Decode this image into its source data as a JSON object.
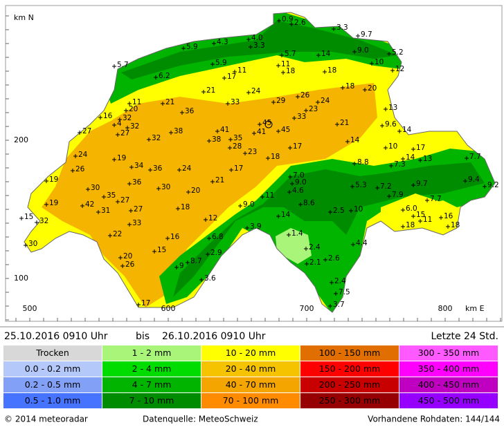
{
  "header": {
    "period_from": "25.10.2016 0910 Uhr",
    "bis": "bis",
    "period_to": "26.10.2016 0910 Uhr",
    "window": "Letzte 24 Std."
  },
  "map": {
    "north_label": "km N",
    "east_label": "km E",
    "y_ticks": [
      200,
      100
    ],
    "x_ticks": [
      500,
      600,
      700,
      800
    ],
    "stations": [
      "0.9",
      "2.6",
      "3.3",
      "9.7",
      "4.0",
      "4.3",
      "5.9",
      "3.3",
      "5.7",
      "14",
      "9.0",
      "5.2",
      "5.7",
      "5.9",
      "11",
      "10",
      "12",
      "6.2",
      "17",
      "11",
      "18",
      "18",
      "18",
      "20",
      "21",
      "24",
      "26",
      "24",
      "11",
      "21",
      "33",
      "29",
      "23",
      "20",
      "16",
      "36",
      "32",
      "13",
      "33",
      "4",
      "32",
      "27",
      "27",
      "38",
      "41",
      "45",
      "21",
      "45",
      "41",
      "9.6",
      "14",
      "32",
      "38",
      "35",
      "28",
      "14",
      "10",
      "17",
      "17",
      "23",
      "24",
      "19",
      "18",
      "14",
      "13",
      "7.7",
      "8.8",
      "7.3",
      "34",
      "36",
      "24",
      "26",
      "17",
      "7.0",
      "9.0",
      "19",
      "36",
      "21",
      "5.3",
      "7.2",
      "9.7",
      "9.4",
      "9.2",
      "30",
      "30",
      "20",
      "4.6",
      "7.9",
      "35",
      "27",
      "11",
      "19",
      "42",
      "9.0",
      "8.6",
      "31",
      "27",
      "18",
      "6.0",
      "7.7",
      "2.5",
      "10",
      "15",
      "11",
      "15",
      "32",
      "14",
      "12",
      "33",
      "16",
      "3.9",
      "18",
      "18",
      "22",
      "1.4",
      "16",
      "6.8",
      "4.4",
      "30",
      "15",
      "2.4",
      "2.9",
      "20",
      "2.6",
      "8.7",
      "26",
      "2.1",
      "9",
      "3.6",
      "2.4",
      "7.5",
      "17",
      "3.7"
    ]
  },
  "legend": [
    {
      "label": "Trocken",
      "color": "#d8d8d8"
    },
    {
      "label": "0.0 - 0.2 mm",
      "color": "#b4c8fa"
    },
    {
      "label": "0.2 - 0.5 mm",
      "color": "#82a0f5"
    },
    {
      "label": "0.5 - 1.0 mm",
      "color": "#4673ff"
    },
    {
      "label": "1 - 2 mm",
      "color": "#a8f57a"
    },
    {
      "label": "2 - 4 mm",
      "color": "#00dc00"
    },
    {
      "label": "4 - 7 mm",
      "color": "#00b400"
    },
    {
      "label": "7 - 10 mm",
      "color": "#008c00"
    },
    {
      "label": "10 - 20 mm",
      "color": "#ffff00"
    },
    {
      "label": "20 - 40 mm",
      "color": "#f5c300"
    },
    {
      "label": "40 - 70 mm",
      "color": "#f5a500"
    },
    {
      "label": "70 - 100 mm",
      "color": "#ff8c00"
    },
    {
      "label": "100 - 150 mm",
      "color": "#e06e00"
    },
    {
      "label": "150 - 200 mm",
      "color": "#ff0000"
    },
    {
      "label": "200 - 250 mm",
      "color": "#c80000"
    },
    {
      "label": "250 - 300 mm",
      "color": "#960000"
    },
    {
      "label": "300 - 350 mm",
      "color": "#ff5aff"
    },
    {
      "label": "350 - 400 mm",
      "color": "#ff00ff"
    },
    {
      "label": "400 - 450 mm",
      "color": "#c000c0"
    },
    {
      "label": "450 - 500 mm",
      "color": "#9600ff"
    }
  ],
  "footer": {
    "copyright": "© 2014 meteoradar",
    "source": "Datenquelle: MeteoSchweiz",
    "raw": "Vorhandene Rohdaten: 144/144"
  }
}
